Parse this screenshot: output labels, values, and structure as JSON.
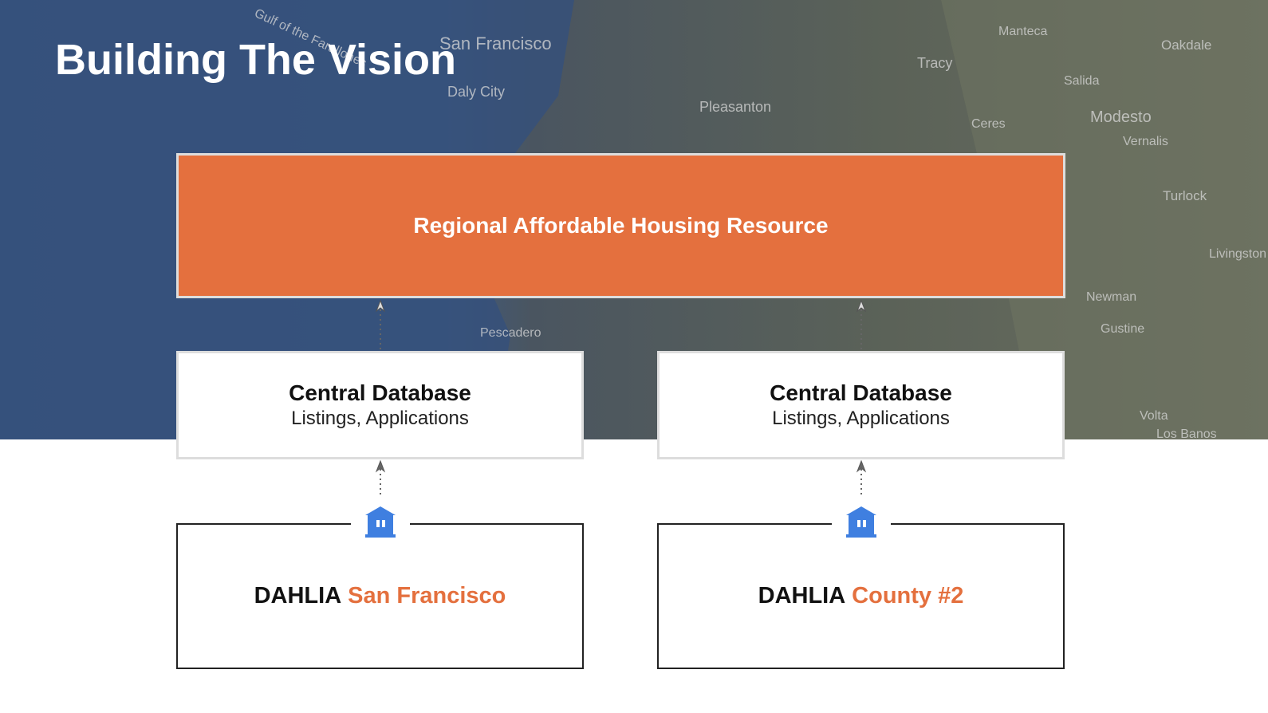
{
  "title": "Building The Vision",
  "top_box": {
    "label": "Regional Affordable Housing Resource"
  },
  "databases": [
    {
      "title": "Central Database",
      "subtitle": "Listings, Applications"
    },
    {
      "title": "Central Database",
      "subtitle": "Listings, Applications"
    }
  ],
  "dahlia": [
    {
      "prefix": "DAHLIA",
      "name": "San Francisco"
    },
    {
      "prefix": "DAHLIA",
      "name": "County #2"
    }
  ],
  "map_labels": [
    "Gulf of the Farallones",
    "San Francisco",
    "Daly City",
    "Pleasanton",
    "Tracy",
    "Manteca",
    "Oakdale",
    "Salida",
    "Modesto",
    "Ceres",
    "Vernalis",
    "Turlock",
    "Livingston",
    "Newman",
    "Gustine",
    "Pescadero",
    "Volta",
    "Los Banos"
  ]
}
